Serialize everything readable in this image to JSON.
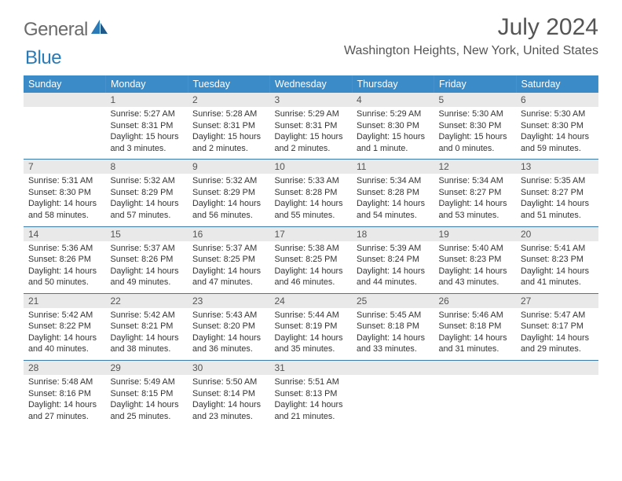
{
  "brand": {
    "part1": "General",
    "part2": "Blue"
  },
  "title": "July 2024",
  "location": "Washington Heights, New York, United States",
  "colors": {
    "header_bg": "#3b8bc9",
    "header_text": "#ffffff",
    "daynum_bg": "#e9e9e9",
    "row_border": "#3b7aaa",
    "logo_gray": "#6b6b6b",
    "logo_blue": "#2a7ab8"
  },
  "dayNames": [
    "Sunday",
    "Monday",
    "Tuesday",
    "Wednesday",
    "Thursday",
    "Friday",
    "Saturday"
  ],
  "weeks": [
    [
      null,
      {
        "n": "1",
        "sunrise": "5:27 AM",
        "sunset": "8:31 PM",
        "daylight": "15 hours and 3 minutes."
      },
      {
        "n": "2",
        "sunrise": "5:28 AM",
        "sunset": "8:31 PM",
        "daylight": "15 hours and 2 minutes."
      },
      {
        "n": "3",
        "sunrise": "5:29 AM",
        "sunset": "8:31 PM",
        "daylight": "15 hours and 2 minutes."
      },
      {
        "n": "4",
        "sunrise": "5:29 AM",
        "sunset": "8:30 PM",
        "daylight": "15 hours and 1 minute."
      },
      {
        "n": "5",
        "sunrise": "5:30 AM",
        "sunset": "8:30 PM",
        "daylight": "15 hours and 0 minutes."
      },
      {
        "n": "6",
        "sunrise": "5:30 AM",
        "sunset": "8:30 PM",
        "daylight": "14 hours and 59 minutes."
      }
    ],
    [
      {
        "n": "7",
        "sunrise": "5:31 AM",
        "sunset": "8:30 PM",
        "daylight": "14 hours and 58 minutes."
      },
      {
        "n": "8",
        "sunrise": "5:32 AM",
        "sunset": "8:29 PM",
        "daylight": "14 hours and 57 minutes."
      },
      {
        "n": "9",
        "sunrise": "5:32 AM",
        "sunset": "8:29 PM",
        "daylight": "14 hours and 56 minutes."
      },
      {
        "n": "10",
        "sunrise": "5:33 AM",
        "sunset": "8:28 PM",
        "daylight": "14 hours and 55 minutes."
      },
      {
        "n": "11",
        "sunrise": "5:34 AM",
        "sunset": "8:28 PM",
        "daylight": "14 hours and 54 minutes."
      },
      {
        "n": "12",
        "sunrise": "5:34 AM",
        "sunset": "8:27 PM",
        "daylight": "14 hours and 53 minutes."
      },
      {
        "n": "13",
        "sunrise": "5:35 AM",
        "sunset": "8:27 PM",
        "daylight": "14 hours and 51 minutes."
      }
    ],
    [
      {
        "n": "14",
        "sunrise": "5:36 AM",
        "sunset": "8:26 PM",
        "daylight": "14 hours and 50 minutes."
      },
      {
        "n": "15",
        "sunrise": "5:37 AM",
        "sunset": "8:26 PM",
        "daylight": "14 hours and 49 minutes."
      },
      {
        "n": "16",
        "sunrise": "5:37 AM",
        "sunset": "8:25 PM",
        "daylight": "14 hours and 47 minutes."
      },
      {
        "n": "17",
        "sunrise": "5:38 AM",
        "sunset": "8:25 PM",
        "daylight": "14 hours and 46 minutes."
      },
      {
        "n": "18",
        "sunrise": "5:39 AM",
        "sunset": "8:24 PM",
        "daylight": "14 hours and 44 minutes."
      },
      {
        "n": "19",
        "sunrise": "5:40 AM",
        "sunset": "8:23 PM",
        "daylight": "14 hours and 43 minutes."
      },
      {
        "n": "20",
        "sunrise": "5:41 AM",
        "sunset": "8:23 PM",
        "daylight": "14 hours and 41 minutes."
      }
    ],
    [
      {
        "n": "21",
        "sunrise": "5:42 AM",
        "sunset": "8:22 PM",
        "daylight": "14 hours and 40 minutes."
      },
      {
        "n": "22",
        "sunrise": "5:42 AM",
        "sunset": "8:21 PM",
        "daylight": "14 hours and 38 minutes."
      },
      {
        "n": "23",
        "sunrise": "5:43 AM",
        "sunset": "8:20 PM",
        "daylight": "14 hours and 36 minutes."
      },
      {
        "n": "24",
        "sunrise": "5:44 AM",
        "sunset": "8:19 PM",
        "daylight": "14 hours and 35 minutes."
      },
      {
        "n": "25",
        "sunrise": "5:45 AM",
        "sunset": "8:18 PM",
        "daylight": "14 hours and 33 minutes."
      },
      {
        "n": "26",
        "sunrise": "5:46 AM",
        "sunset": "8:18 PM",
        "daylight": "14 hours and 31 minutes."
      },
      {
        "n": "27",
        "sunrise": "5:47 AM",
        "sunset": "8:17 PM",
        "daylight": "14 hours and 29 minutes."
      }
    ],
    [
      {
        "n": "28",
        "sunrise": "5:48 AM",
        "sunset": "8:16 PM",
        "daylight": "14 hours and 27 minutes."
      },
      {
        "n": "29",
        "sunrise": "5:49 AM",
        "sunset": "8:15 PM",
        "daylight": "14 hours and 25 minutes."
      },
      {
        "n": "30",
        "sunrise": "5:50 AM",
        "sunset": "8:14 PM",
        "daylight": "14 hours and 23 minutes."
      },
      {
        "n": "31",
        "sunrise": "5:51 AM",
        "sunset": "8:13 PM",
        "daylight": "14 hours and 21 minutes."
      },
      null,
      null,
      null
    ]
  ],
  "labels": {
    "sunrise": "Sunrise:",
    "sunset": "Sunset:",
    "daylight": "Daylight:"
  }
}
